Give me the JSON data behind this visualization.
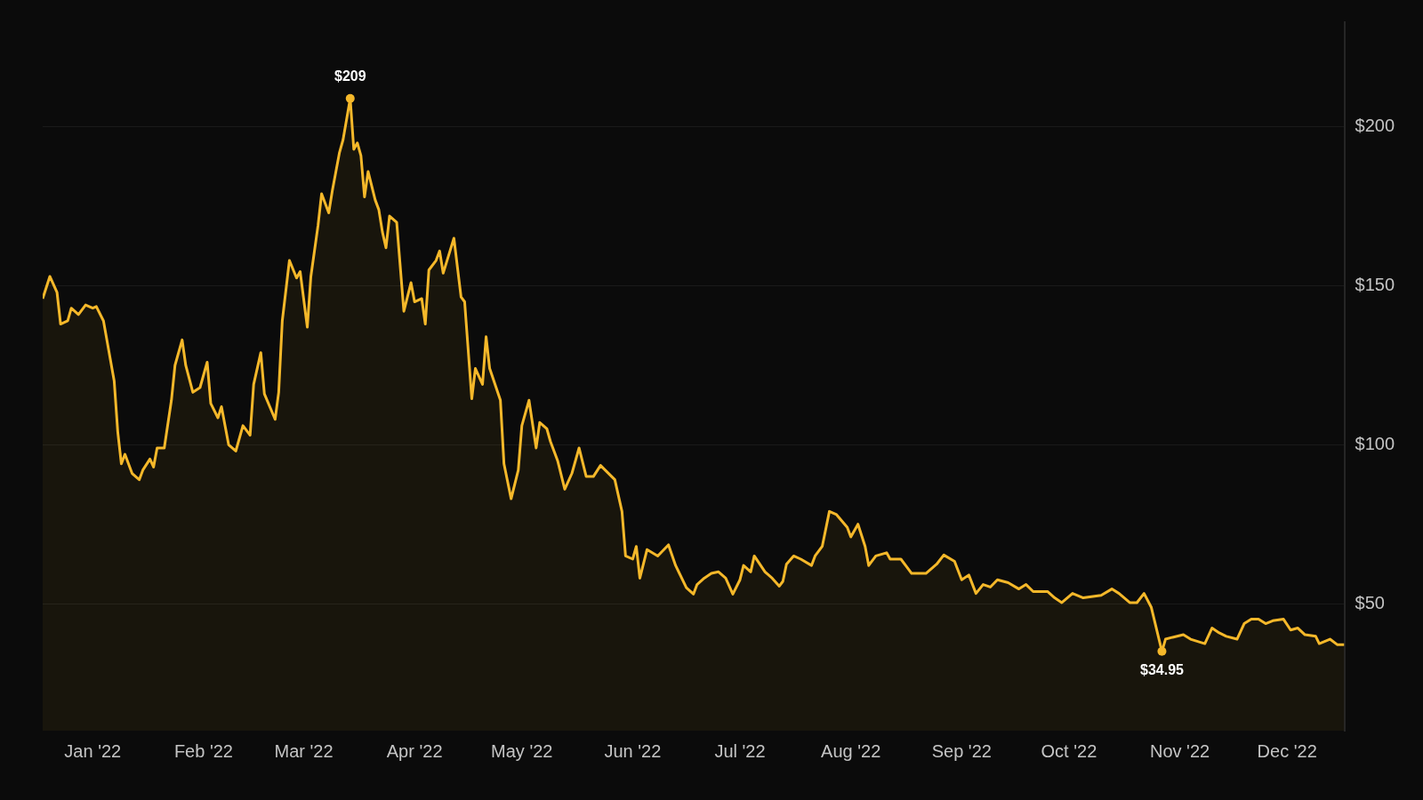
{
  "chart_data": {
    "type": "area",
    "x": [
      "2021-12-18",
      "2021-12-20",
      "2021-12-22",
      "2021-12-23",
      "2021-12-25",
      "2021-12-26",
      "2021-12-28",
      "2021-12-30",
      "2022-01-01",
      "2022-01-02",
      "2022-01-04",
      "2022-01-07",
      "2022-01-08",
      "2022-01-09",
      "2022-01-10",
      "2022-01-12",
      "2022-01-14",
      "2022-01-15",
      "2022-01-17",
      "2022-01-18",
      "2022-01-19",
      "2022-01-21",
      "2022-01-23",
      "2022-01-24",
      "2022-01-26",
      "2022-01-27",
      "2022-01-29",
      "2022-01-31",
      "2022-02-02",
      "2022-02-03",
      "2022-02-05",
      "2022-02-06",
      "2022-02-08",
      "2022-02-10",
      "2022-02-12",
      "2022-02-14",
      "2022-02-15",
      "2022-02-17",
      "2022-02-18",
      "2022-02-21",
      "2022-02-22",
      "2022-02-23",
      "2022-02-25",
      "2022-02-27",
      "2022-02-28",
      "2022-03-02",
      "2022-03-03",
      "2022-03-05",
      "2022-03-06",
      "2022-03-08",
      "2022-03-09",
      "2022-03-11",
      "2022-03-12",
      "2022-03-14",
      "2022-03-15",
      "2022-03-16",
      "2022-03-17",
      "2022-03-18",
      "2022-03-19",
      "2022-03-21",
      "2022-03-22",
      "2022-03-23",
      "2022-03-24",
      "2022-03-25",
      "2022-03-27",
      "2022-03-29",
      "2022-03-31",
      "2022-04-01",
      "2022-04-03",
      "2022-04-04",
      "2022-04-05",
      "2022-04-07",
      "2022-04-08",
      "2022-04-09",
      "2022-04-12",
      "2022-04-14",
      "2022-04-15",
      "2022-04-17",
      "2022-04-18",
      "2022-04-20",
      "2022-04-21",
      "2022-04-22",
      "2022-04-25",
      "2022-04-26",
      "2022-04-28",
      "2022-04-30",
      "2022-05-01",
      "2022-05-03",
      "2022-05-05",
      "2022-05-06",
      "2022-05-08",
      "2022-05-09",
      "2022-05-11",
      "2022-05-13",
      "2022-05-15",
      "2022-05-17",
      "2022-05-19",
      "2022-05-21",
      "2022-05-23",
      "2022-05-27",
      "2022-05-29",
      "2022-05-30",
      "2022-06-01",
      "2022-06-02",
      "2022-06-03",
      "2022-06-05",
      "2022-06-08",
      "2022-06-11",
      "2022-06-13",
      "2022-06-16",
      "2022-06-18",
      "2022-06-19",
      "2022-06-21",
      "2022-06-23",
      "2022-06-25",
      "2022-06-27",
      "2022-06-29",
      "2022-07-01",
      "2022-07-02",
      "2022-07-04",
      "2022-07-05",
      "2022-07-08",
      "2022-07-10",
      "2022-07-12",
      "2022-07-13",
      "2022-07-14",
      "2022-07-16",
      "2022-07-18",
      "2022-07-21",
      "2022-07-22",
      "2022-07-24",
      "2022-07-26",
      "2022-07-28",
      "2022-07-31",
      "2022-08-01",
      "2022-08-03",
      "2022-08-05",
      "2022-08-06",
      "2022-08-08",
      "2022-08-11",
      "2022-08-12",
      "2022-08-15",
      "2022-08-18",
      "2022-08-22",
      "2022-08-25",
      "2022-08-27",
      "2022-08-30",
      "2022-09-01",
      "2022-09-03",
      "2022-09-05",
      "2022-09-07",
      "2022-09-09",
      "2022-09-11",
      "2022-09-14",
      "2022-09-17",
      "2022-09-19",
      "2022-09-21",
      "2022-09-25",
      "2022-09-27",
      "2022-09-29",
      "2022-10-02",
      "2022-10-05",
      "2022-10-10",
      "2022-10-13",
      "2022-10-15",
      "2022-10-18",
      "2022-10-20",
      "2022-10-22",
      "2022-10-24",
      "2022-10-27",
      "2022-10-28",
      "2022-10-30",
      "2022-11-02",
      "2022-11-04",
      "2022-11-08",
      "2022-11-10",
      "2022-11-12",
      "2022-11-14",
      "2022-11-17",
      "2022-11-19",
      "2022-11-21",
      "2022-11-23",
      "2022-11-25",
      "2022-11-27",
      "2022-11-30",
      "2022-12-02",
      "2022-12-04",
      "2022-12-06",
      "2022-12-09",
      "2022-12-10",
      "2022-12-13",
      "2022-12-15",
      "2022-12-17"
    ],
    "series": [
      {
        "color": "#f5b82a",
        "values": [
          146,
          153,
          148,
          138,
          139,
          143,
          141,
          144,
          143,
          143.5,
          139,
          120,
          104,
          94,
          97,
          91,
          89,
          92,
          95.5,
          93,
          99,
          99,
          114,
          125,
          133,
          125,
          116.5,
          118,
          126,
          113,
          108.5,
          112,
          100,
          98,
          106,
          103,
          119,
          129,
          116,
          108,
          116.5,
          139,
          158,
          152.5,
          154.5,
          137,
          153,
          169,
          179,
          173,
          180,
          192,
          196,
          209,
          193,
          195,
          191,
          178,
          186,
          177,
          174,
          167,
          162,
          172,
          170,
          142,
          151,
          145,
          146,
          138,
          155,
          158,
          161,
          154,
          165,
          146.5,
          145,
          114.5,
          124,
          119,
          134,
          124,
          114,
          94,
          83,
          92,
          106,
          114,
          99,
          107,
          105,
          101,
          95,
          86,
          91,
          99,
          90,
          90,
          93.5,
          89,
          79,
          65,
          64,
          68,
          58,
          67,
          65,
          68.5,
          62,
          55,
          53,
          56,
          58,
          59.5,
          60,
          58,
          53,
          57.5,
          62,
          60,
          65,
          60,
          58,
          55.5,
          57,
          62.4,
          65,
          64,
          62,
          65,
          68,
          79,
          78,
          74,
          71,
          75,
          68,
          62,
          65,
          66,
          64,
          64,
          59.5,
          59.5,
          62.4,
          65.3,
          63.3,
          57.5,
          59,
          53.2,
          56,
          55.2,
          57.5,
          56.6,
          54.6,
          56,
          53.8,
          53.8,
          51.8,
          50.3,
          53.2,
          51.8,
          52.6,
          54.6,
          53.2,
          50.3,
          50.3,
          53.2,
          48.9,
          34.95,
          38.8,
          39.4,
          40.2,
          38.8,
          37.4,
          42.3,
          40.8,
          39.7,
          38.8,
          43.7,
          45.1,
          45.1,
          43.7,
          44.6,
          45.1,
          41.7,
          42.3,
          40.2,
          39.7,
          37.4,
          38.8,
          37.1,
          37.1
        ]
      }
    ],
    "xlim": [
      "2021-12-18",
      "2022-12-17"
    ],
    "xticks": [
      {
        "value": "2022-01-01",
        "label": "Jan '22"
      },
      {
        "value": "2022-02-01",
        "label": "Feb '22"
      },
      {
        "value": "2022-03-01",
        "label": "Mar '22"
      },
      {
        "value": "2022-04-01",
        "label": "Apr '22"
      },
      {
        "value": "2022-05-01",
        "label": "May '22"
      },
      {
        "value": "2022-06-01",
        "label": "Jun '22"
      },
      {
        "value": "2022-07-01",
        "label": "Jul '22"
      },
      {
        "value": "2022-08-01",
        "label": "Aug '22"
      },
      {
        "value": "2022-09-01",
        "label": "Sep '22"
      },
      {
        "value": "2022-10-01",
        "label": "Oct '22"
      },
      {
        "value": "2022-11-01",
        "label": "Nov '22"
      },
      {
        "value": "2022-12-01",
        "label": "Dec '22"
      }
    ],
    "ylim": [
      10,
      233
    ],
    "yticks": [
      {
        "value": 50,
        "label": "$50"
      },
      {
        "value": 100,
        "label": "$100"
      },
      {
        "value": 150,
        "label": "$150"
      },
      {
        "value": 200,
        "label": "$200"
      }
    ],
    "grid": "y",
    "legend": false,
    "marker": "none",
    "line_style": "solid",
    "annotations": [
      {
        "text": "$209",
        "x": "2022-03-14",
        "y": 209
      },
      {
        "text": "$34.95",
        "x": "2022-10-27",
        "y": 34.95
      }
    ]
  }
}
